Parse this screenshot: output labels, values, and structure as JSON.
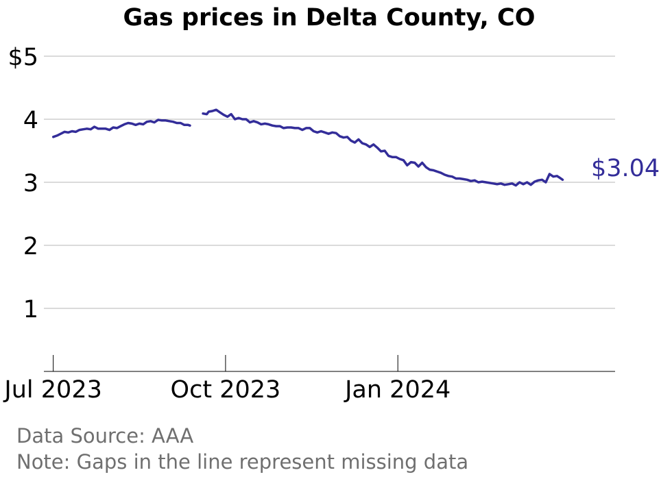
{
  "chart_data": {
    "type": "line",
    "title": "Gas prices in Delta County, CO",
    "xlabel": "",
    "ylabel": "",
    "ylim": [
      0,
      5
    ],
    "xlim": [
      "2023-06-26",
      "2024-04-26"
    ],
    "yticks": [
      {
        "value": 5,
        "label": "$5"
      },
      {
        "value": 4,
        "label": "4"
      },
      {
        "value": 3,
        "label": "3"
      },
      {
        "value": 2,
        "label": "2"
      },
      {
        "value": 1,
        "label": "1"
      }
    ],
    "xticks": [
      {
        "date": "2023-07-01",
        "label": "Jul 2023"
      },
      {
        "date": "2023-10-01",
        "label": "Oct 2023"
      },
      {
        "date": "2024-01-01",
        "label": "Jan 2024"
      }
    ],
    "grid": true,
    "color": "#332d99",
    "end_label": "$3.04",
    "series": [
      {
        "segments": [
          [
            [
              "2023-07-01",
              3.72
            ],
            [
              "2023-07-03",
              3.74
            ],
            [
              "2023-07-05",
              3.77
            ],
            [
              "2023-07-07",
              3.8
            ],
            [
              "2023-07-09",
              3.79
            ],
            [
              "2023-07-11",
              3.81
            ],
            [
              "2023-07-13",
              3.8
            ],
            [
              "2023-07-15",
              3.83
            ],
            [
              "2023-07-17",
              3.84
            ],
            [
              "2023-07-19",
              3.85
            ],
            [
              "2023-07-21",
              3.84
            ],
            [
              "2023-07-23",
              3.88
            ],
            [
              "2023-07-25",
              3.85
            ],
            [
              "2023-07-27",
              3.85
            ],
            [
              "2023-07-29",
              3.85
            ],
            [
              "2023-07-31",
              3.83
            ],
            [
              "2023-08-02",
              3.87
            ],
            [
              "2023-08-04",
              3.86
            ],
            [
              "2023-08-06",
              3.89
            ],
            [
              "2023-08-08",
              3.92
            ],
            [
              "2023-08-10",
              3.94
            ],
            [
              "2023-08-12",
              3.93
            ],
            [
              "2023-08-14",
              3.91
            ],
            [
              "2023-08-16",
              3.93
            ],
            [
              "2023-08-18",
              3.92
            ],
            [
              "2023-08-20",
              3.96
            ],
            [
              "2023-08-22",
              3.97
            ],
            [
              "2023-08-24",
              3.95
            ],
            [
              "2023-08-26",
              3.99
            ],
            [
              "2023-08-28",
              3.98
            ],
            [
              "2023-08-30",
              3.98
            ],
            [
              "2023-09-01",
              3.97
            ],
            [
              "2023-09-03",
              3.96
            ],
            [
              "2023-09-05",
              3.94
            ],
            [
              "2023-09-07",
              3.94
            ],
            [
              "2023-09-09",
              3.91
            ],
            [
              "2023-09-11",
              3.91
            ],
            [
              "2023-09-12",
              3.9
            ]
          ],
          [
            [
              "2023-09-19",
              4.09
            ],
            [
              "2023-09-21",
              4.08
            ],
            [
              "2023-09-22",
              4.12
            ],
            [
              "2023-09-24",
              4.13
            ],
            [
              "2023-09-26",
              4.15
            ],
            [
              "2023-09-28",
              4.11
            ],
            [
              "2023-09-30",
              4.07
            ],
            [
              "2023-10-02",
              4.04
            ],
            [
              "2023-10-04",
              4.08
            ],
            [
              "2023-10-06",
              4.0
            ],
            [
              "2023-10-08",
              4.02
            ],
            [
              "2023-10-10",
              4.0
            ],
            [
              "2023-10-12",
              4.0
            ],
            [
              "2023-10-14",
              3.95
            ],
            [
              "2023-10-16",
              3.97
            ],
            [
              "2023-10-18",
              3.95
            ],
            [
              "2023-10-20",
              3.92
            ],
            [
              "2023-10-22",
              3.93
            ],
            [
              "2023-10-24",
              3.92
            ],
            [
              "2023-10-26",
              3.9
            ],
            [
              "2023-10-28",
              3.89
            ],
            [
              "2023-10-30",
              3.89
            ],
            [
              "2023-11-01",
              3.86
            ],
            [
              "2023-11-03",
              3.87
            ],
            [
              "2023-11-05",
              3.87
            ],
            [
              "2023-11-07",
              3.86
            ],
            [
              "2023-11-09",
              3.86
            ],
            [
              "2023-11-11",
              3.83
            ],
            [
              "2023-11-13",
              3.86
            ],
            [
              "2023-11-15",
              3.86
            ],
            [
              "2023-11-17",
              3.81
            ],
            [
              "2023-11-19",
              3.79
            ],
            [
              "2023-11-21",
              3.81
            ],
            [
              "2023-11-23",
              3.79
            ],
            [
              "2023-11-25",
              3.77
            ],
            [
              "2023-11-27",
              3.79
            ],
            [
              "2023-11-29",
              3.78
            ],
            [
              "2023-12-01",
              3.73
            ],
            [
              "2023-12-03",
              3.71
            ],
            [
              "2023-12-05",
              3.72
            ],
            [
              "2023-12-07",
              3.66
            ],
            [
              "2023-12-09",
              3.63
            ],
            [
              "2023-12-11",
              3.68
            ],
            [
              "2023-12-13",
              3.62
            ],
            [
              "2023-12-15",
              3.6
            ],
            [
              "2023-12-17",
              3.56
            ],
            [
              "2023-12-19",
              3.6
            ],
            [
              "2023-12-21",
              3.55
            ],
            [
              "2023-12-23",
              3.49
            ],
            [
              "2023-12-25",
              3.5
            ],
            [
              "2023-12-27",
              3.42
            ],
            [
              "2023-12-29",
              3.4
            ],
            [
              "2023-12-31",
              3.4
            ],
            [
              "2024-01-02",
              3.37
            ],
            [
              "2024-01-04",
              3.35
            ],
            [
              "2024-01-06",
              3.27
            ],
            [
              "2024-01-08",
              3.32
            ],
            [
              "2024-01-10",
              3.31
            ],
            [
              "2024-01-12",
              3.25
            ],
            [
              "2024-01-14",
              3.31
            ],
            [
              "2024-01-16",
              3.24
            ],
            [
              "2024-01-18",
              3.2
            ],
            [
              "2024-01-20",
              3.19
            ],
            [
              "2024-01-22",
              3.17
            ],
            [
              "2024-01-24",
              3.15
            ],
            [
              "2024-01-26",
              3.12
            ],
            [
              "2024-01-28",
              3.1
            ],
            [
              "2024-01-30",
              3.09
            ],
            [
              "2024-02-01",
              3.06
            ],
            [
              "2024-02-03",
              3.06
            ],
            [
              "2024-02-05",
              3.05
            ],
            [
              "2024-02-07",
              3.04
            ],
            [
              "2024-02-09",
              3.02
            ],
            [
              "2024-02-11",
              3.03
            ],
            [
              "2024-02-13",
              3.0
            ],
            [
              "2024-02-15",
              3.01
            ],
            [
              "2024-02-17",
              3.0
            ],
            [
              "2024-02-19",
              2.99
            ],
            [
              "2024-02-21",
              2.98
            ],
            [
              "2024-02-23",
              2.97
            ],
            [
              "2024-02-25",
              2.98
            ],
            [
              "2024-02-27",
              2.96
            ],
            [
              "2024-02-29",
              2.97
            ],
            [
              "2024-03-02",
              2.98
            ],
            [
              "2024-03-04",
              2.95
            ],
            [
              "2024-03-06",
              3.0
            ],
            [
              "2024-03-08",
              2.97
            ],
            [
              "2024-03-10",
              3.0
            ],
            [
              "2024-03-12",
              2.96
            ],
            [
              "2024-03-14",
              3.01
            ],
            [
              "2024-03-16",
              3.03
            ],
            [
              "2024-03-18",
              3.04
            ],
            [
              "2024-03-20",
              3.0
            ],
            [
              "2024-03-22",
              3.13
            ],
            [
              "2024-03-24",
              3.09
            ],
            [
              "2024-03-26",
              3.1
            ],
            [
              "2024-03-27",
              3.08
            ],
            [
              "2024-03-29",
              3.04
            ]
          ]
        ]
      }
    ]
  },
  "footer": {
    "source": "Data Source: AAA",
    "note": "Note: Gaps in the line represent missing data"
  }
}
